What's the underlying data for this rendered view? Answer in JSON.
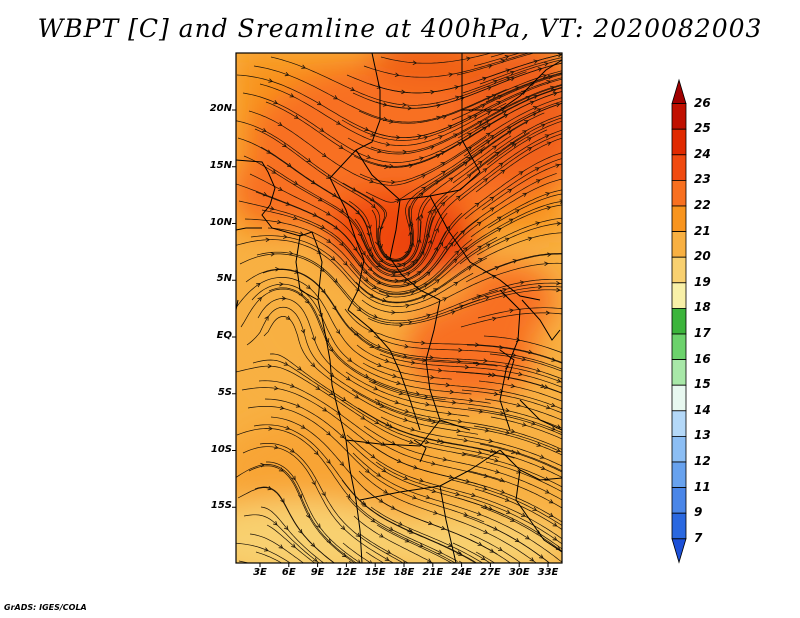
{
  "title": "WBPT [C] and Sreamline at 400hPa, VT: 2020082003",
  "footer": "GrADS: IGES/COLA",
  "lat_labels": [
    "20N",
    "15N",
    "10N",
    "5N",
    "EQ",
    "5S",
    "10S",
    "15S"
  ],
  "lon_labels": [
    "3E",
    "6E",
    "9E",
    "12E",
    "15E",
    "18E",
    "21E",
    "24E",
    "27E",
    "30E",
    "33E"
  ],
  "colorbar": {
    "labels": [
      "26",
      "25",
      "24",
      "23",
      "22",
      "21",
      "20",
      "19",
      "18",
      "17",
      "16",
      "15",
      "14",
      "13",
      "12",
      "11",
      "9",
      "7"
    ],
    "colors": [
      "#a00000",
      "#c01000",
      "#e02a00",
      "#f04a10",
      "#f87020",
      "#f8941e",
      "#f8b042",
      "#f8d070",
      "#f8f0a8",
      "#3cb43c",
      "#6cd26c",
      "#a8e8a8",
      "#e8f8f0",
      "#b4d8f8",
      "#8cbef4",
      "#68a2ee",
      "#4a86e8",
      "#2a68e0",
      "#1c50d8"
    ]
  },
  "wbpt_field": {
    "units": "C",
    "level": "400hPa",
    "valid_time": "2020082003",
    "max_region": "central africa near 17E 8N (about 24 C)",
    "min_region": "southwest near 3E 15S (about 19 C)"
  }
}
